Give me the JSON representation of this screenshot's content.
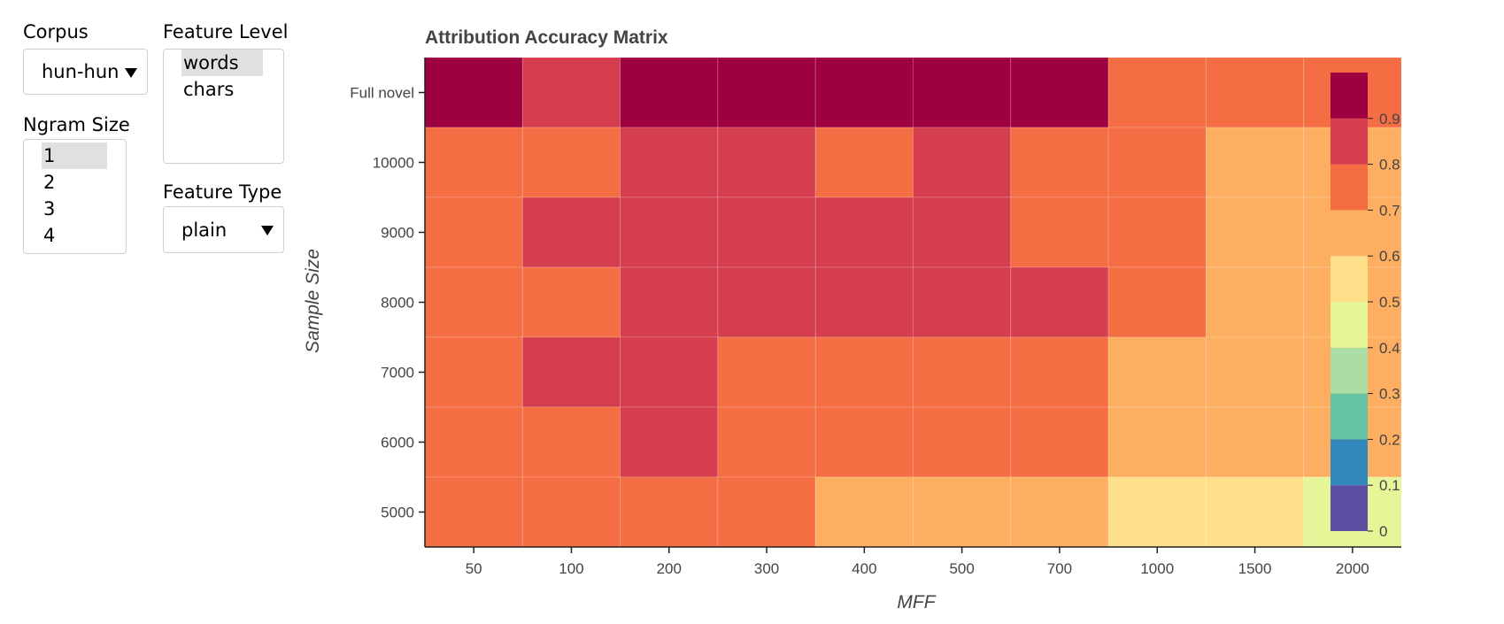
{
  "controls": {
    "corpus": {
      "label": "Corpus",
      "value": "hun-hun"
    },
    "ngram": {
      "label": "Ngram Size",
      "options": [
        "1",
        "2",
        "3",
        "4"
      ],
      "selected": "1"
    },
    "feature_level": {
      "label": "Feature Level",
      "options": [
        "words",
        "chars"
      ],
      "selected": "words"
    },
    "feature_type": {
      "label": "Feature Type",
      "value": "plain"
    }
  },
  "chart_data": {
    "type": "heatmap",
    "title": "Attribution Accuracy Matrix",
    "xlabel": "MFF",
    "ylabel": "Sample Size",
    "x": [
      "50",
      "100",
      "200",
      "300",
      "400",
      "500",
      "700",
      "1000",
      "1500",
      "2000"
    ],
    "y": [
      "Full novel",
      "10000",
      "9000",
      "8000",
      "7000",
      "6000",
      "5000"
    ],
    "values": [
      [
        0.95,
        0.85,
        0.95,
        0.95,
        0.95,
        0.95,
        0.95,
        0.75,
        0.75,
        0.75
      ],
      [
        0.75,
        0.75,
        0.85,
        0.85,
        0.75,
        0.85,
        0.75,
        0.75,
        0.65,
        0.65
      ],
      [
        0.75,
        0.85,
        0.85,
        0.85,
        0.85,
        0.85,
        0.75,
        0.75,
        0.65,
        0.65
      ],
      [
        0.75,
        0.75,
        0.85,
        0.85,
        0.85,
        0.85,
        0.85,
        0.75,
        0.65,
        0.65
      ],
      [
        0.75,
        0.85,
        0.85,
        0.75,
        0.75,
        0.75,
        0.75,
        0.65,
        0.65,
        0.65
      ],
      [
        0.75,
        0.75,
        0.85,
        0.75,
        0.75,
        0.75,
        0.75,
        0.65,
        0.65,
        0.65
      ],
      [
        0.75,
        0.75,
        0.75,
        0.75,
        0.65,
        0.65,
        0.65,
        0.55,
        0.55,
        0.45
      ]
    ],
    "colorbar": {
      "range": [
        0,
        1
      ],
      "ticks": [
        "0",
        "0.1",
        "0.2",
        "0.3",
        "0.4",
        "0.5",
        "0.6",
        "0.7",
        "0.8",
        "0.9"
      ],
      "colors": [
        "#5e4fa2",
        "#3288bd",
        "#66c2a5",
        "#abdda4",
        "#e6f598",
        "#fee08b",
        "#fdae61",
        "#f46d43",
        "#d53e4f",
        "#9e0142"
      ]
    },
    "grid": false
  }
}
